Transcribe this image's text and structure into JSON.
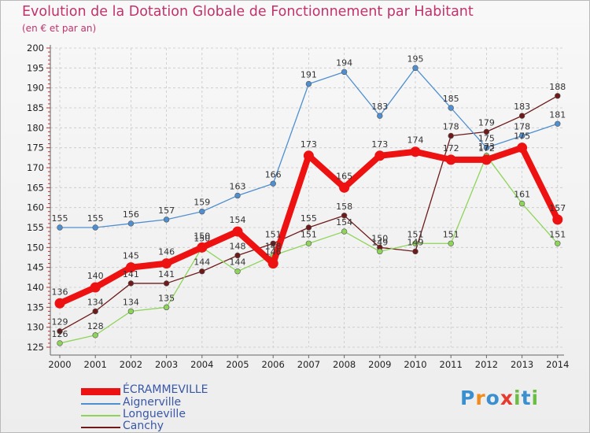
{
  "header": {
    "title": "Evolution de la Dotation Globale de Fonctionnement par Habitant",
    "subtitle": "(en € et par an)"
  },
  "logo": {
    "letters": [
      "P",
      "r",
      "o",
      "x",
      "i",
      "t",
      "i"
    ],
    "colors": [
      "#3a8fd0",
      "#f08b1e",
      "#3a8fd0",
      "#e63a2e",
      "#6cbd45",
      "#3a8fd0",
      "#6cbd45"
    ]
  },
  "chart_data": {
    "type": "line",
    "title": "Evolution de la Dotation Globale de Fonctionnement par Habitant",
    "subtitle": "(en € et par an)",
    "xlabel": "",
    "ylabel": "",
    "ylim": [
      125,
      200
    ],
    "y_ticks": [
      125,
      130,
      135,
      140,
      145,
      150,
      155,
      160,
      165,
      170,
      175,
      180,
      185,
      190,
      195,
      200
    ],
    "grid": true,
    "legend_position": "bottom-left",
    "categories": [
      "2000",
      "2001",
      "2002",
      "2003",
      "2004",
      "2005",
      "2006",
      "2007",
      "2008",
      "2009",
      "2010",
      "2011",
      "2012",
      "2013",
      "2014"
    ],
    "series": [
      {
        "name": "ÉCRAMMEVILLE",
        "color": "#ee1111",
        "values": [
          136,
          140,
          145,
          146,
          150,
          154,
          146,
          173,
          165,
          173,
          174,
          172,
          172,
          175,
          157
        ]
      },
      {
        "name": "Aignerville",
        "color": "#4f8fd0",
        "values": [
          155,
          155,
          156,
          157,
          159,
          163,
          166,
          191,
          194,
          183,
          195,
          185,
          175,
          178,
          181
        ]
      },
      {
        "name": "Longueville",
        "color": "#8fd45a",
        "values": [
          126,
          128,
          134,
          135,
          150,
          144,
          148,
          151,
          154,
          149,
          151,
          151,
          173,
          161,
          151
        ]
      },
      {
        "name": "Canchy",
        "color": "#6e1a1a",
        "values": [
          129,
          134,
          141,
          141,
          144,
          148,
          151,
          155,
          158,
          150,
          149,
          178,
          179,
          183,
          188
        ]
      }
    ]
  }
}
